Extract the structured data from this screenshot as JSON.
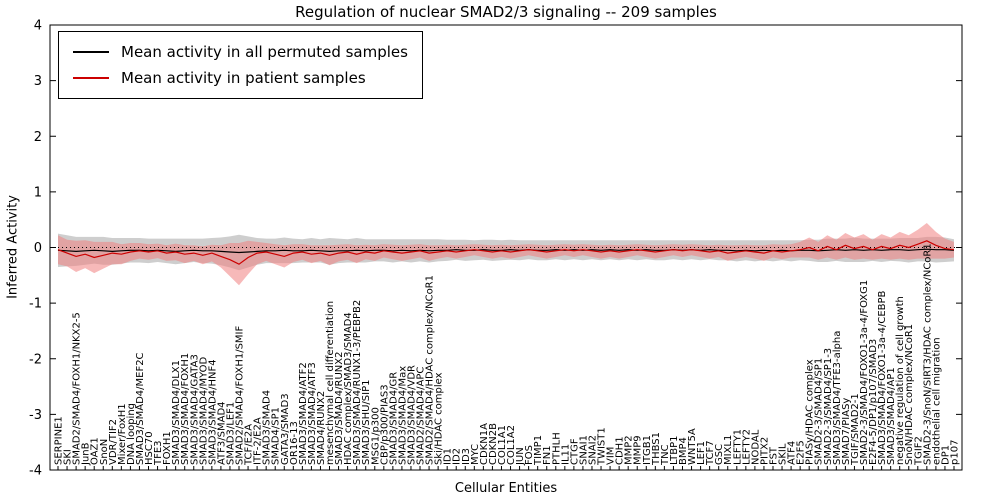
{
  "figure": {
    "title": "Regulation of nuclear SMAD2/3 signaling -- 209 samples",
    "xlabel": "Cellular Entities",
    "ylabel": "Inferred Activity"
  },
  "legend": {
    "items": [
      {
        "label": "Mean activity in all permuted samples",
        "color": "#000000"
      },
      {
        "label": "Mean activity in patient samples",
        "color": "#cc0000"
      }
    ]
  },
  "chart_data": {
    "type": "line",
    "title": "Regulation of nuclear SMAD2/3 signaling -- 209 samples",
    "xlabel": "Cellular Entities",
    "ylabel": "Inferred Activity",
    "ylim": [
      -4,
      4
    ],
    "yticks": [
      -4,
      -3,
      -2,
      -1,
      0,
      1,
      2,
      3,
      4
    ],
    "grid": false,
    "zero_line": true,
    "legend_position": "upper left",
    "categories": [
      "SERPINE1",
      "SKI",
      "SMAD2/SMAD4/FOXH1/NKX2-5",
      "JunB",
      "OAZ1",
      "SnoN",
      "VDR/TIF2",
      "Mixer/FoxH1",
      "DNA looping",
      "SMAD3/SMAD4/MEF2C",
      "HSC70",
      "TFE3",
      "FOXH1",
      "SMAD3/SMAD4/DLX1",
      "SMAD3/SMAD4/FOXH1",
      "SMAD3/SMAD4/GATA3",
      "SMAD3/SMAD4/MYOD",
      "SMAD3/SMAD4/HNF4",
      "ATF3/SMAD4",
      "SMAD3/LEF1",
      "SMAD2/SMAD4/FOXH1/SMIF",
      "TCF/E2A",
      "ITF-2/E2A",
      "SMAD3/SMAD4",
      "SMAD4/SP1",
      "GATA3/SMAD3",
      "OR16-13",
      "SMAD3/SMAD4/ATF2",
      "SMAD3/SMAD4/ATF3",
      "SMAD4/RUNX2",
      "mesenchymal cell differentiation",
      "SMAD3/SMAD4/RUNX2",
      "HDAC complex/SMAD3/SMAD4",
      "SMAD3/SMAD4/RUNX1-3/PEBPB2",
      "SMAD3/SHU/SIP1",
      "MSG1/p300",
      "CBP/p300/PIAS3",
      "SMAD3/SMAD4/GR",
      "SMAD3/SMAD4/Max",
      "SMAD3/SMAD4/VDR",
      "SMAD2/SMAD4/APC",
      "SMAD2/SMAD4/HDAC complex/NCoR1",
      "Ski/HDAC complex",
      "ID1",
      "ID2",
      "ID3",
      "MYC",
      "CDKN1A",
      "CDKN2B",
      "COL1A1",
      "COL1A2",
      "JUN",
      "FOS",
      "TIMP1",
      "FN1",
      "PTHLH",
      "IL11",
      "CTGF",
      "SNAI1",
      "SNAI2",
      "TWIST1",
      "VIM",
      "CDH1",
      "MMP2",
      "MMP9",
      "ITGB1",
      "THBS1",
      "TNC",
      "LTBP1",
      "BMP4",
      "WNT5A",
      "LEF1",
      "TCF7",
      "GSC",
      "MIXL1",
      "LEFTY1",
      "LEFTY2",
      "NODAL",
      "PITX2",
      "FST",
      "SKIL",
      "ATF4",
      "E2F5",
      "PIASy/HDAC complex",
      "SMAD2-3/SMAD4/SP1",
      "SMAD2-3/SMAD4/SP1-3",
      "SMAD3/SMAD4/TFE3-alpha",
      "SMAD7/PIASy",
      "TGIF/SMAD2-1",
      "SMAD2-3/SMAD4/FOXO1-3a-4/FOXG1",
      "E2F4-5/DP1/p107/SMAD3",
      "SMAD3/SMAD4/FOXO1-3a-4/CEBPB",
      "SMAD3/SMAD4/AP1",
      "negative regulation of cell growth",
      "SnoN/HDAC complex/NCoR1",
      "TGIF2",
      "SMAD2-3/SnoN/SIRT3/HDAC complex/NCoR1",
      "endothelial cell migration",
      "DP1",
      "p107"
    ],
    "series": [
      {
        "name": "Mean activity in all permuted samples",
        "color": "#000000",
        "band_color": "#bdbdbd",
        "band_opacity": 0.75,
        "values": [
          -0.05,
          -0.06,
          -0.07,
          -0.06,
          -0.05,
          -0.06,
          -0.07,
          -0.06,
          -0.05,
          -0.05,
          -0.06,
          -0.05,
          -0.06,
          -0.07,
          -0.06,
          -0.05,
          -0.06,
          -0.06,
          -0.07,
          -0.08,
          -0.09,
          -0.08,
          -0.07,
          -0.06,
          -0.06,
          -0.05,
          -0.06,
          -0.06,
          -0.05,
          -0.06,
          -0.07,
          -0.06,
          -0.06,
          -0.05,
          -0.06,
          -0.05,
          -0.05,
          -0.06,
          -0.05,
          -0.06,
          -0.05,
          -0.06,
          -0.05,
          -0.05,
          -0.04,
          -0.05,
          -0.05,
          -0.04,
          -0.05,
          -0.05,
          -0.04,
          -0.05,
          -0.04,
          -0.05,
          -0.05,
          -0.04,
          -0.05,
          -0.04,
          -0.05,
          -0.04,
          -0.05,
          -0.04,
          -0.05,
          -0.04,
          -0.05,
          -0.04,
          -0.05,
          -0.05,
          -0.04,
          -0.05,
          -0.04,
          -0.05,
          -0.04,
          -0.05,
          -0.05,
          -0.06,
          -0.05,
          -0.06,
          -0.05,
          -0.06,
          -0.05,
          -0.06,
          -0.05,
          -0.05,
          -0.06,
          -0.05,
          -0.04,
          -0.05,
          -0.04,
          -0.05,
          -0.04,
          -0.05,
          -0.04,
          -0.04,
          -0.05,
          -0.04,
          -0.03,
          -0.04,
          -0.04,
          -0.05
        ],
        "band_halfwidth": [
          0.3,
          0.28,
          0.26,
          0.25,
          0.24,
          0.25,
          0.24,
          0.23,
          0.22,
          0.22,
          0.22,
          0.21,
          0.22,
          0.23,
          0.22,
          0.21,
          0.22,
          0.23,
          0.25,
          0.28,
          0.32,
          0.28,
          0.24,
          0.22,
          0.22,
          0.23,
          0.22,
          0.21,
          0.22,
          0.21,
          0.24,
          0.22,
          0.21,
          0.22,
          0.21,
          0.2,
          0.2,
          0.21,
          0.2,
          0.21,
          0.2,
          0.21,
          0.2,
          0.19,
          0.18,
          0.19,
          0.18,
          0.18,
          0.19,
          0.18,
          0.18,
          0.18,
          0.17,
          0.18,
          0.18,
          0.17,
          0.18,
          0.17,
          0.18,
          0.17,
          0.18,
          0.17,
          0.18,
          0.17,
          0.18,
          0.17,
          0.18,
          0.18,
          0.17,
          0.18,
          0.17,
          0.18,
          0.17,
          0.18,
          0.18,
          0.19,
          0.18,
          0.19,
          0.18,
          0.19,
          0.18,
          0.19,
          0.18,
          0.19,
          0.2,
          0.21,
          0.2,
          0.21,
          0.22,
          0.21,
          0.2,
          0.21,
          0.2,
          0.21,
          0.22,
          0.21,
          0.22,
          0.23,
          0.22,
          0.2
        ]
      },
      {
        "name": "Mean activity in patient samples",
        "color": "#cc0000",
        "band_color": "#f08080",
        "band_opacity": 0.55,
        "values": [
          -0.04,
          -0.1,
          -0.16,
          -0.12,
          -0.18,
          -0.14,
          -0.1,
          -0.12,
          -0.08,
          -0.06,
          -0.08,
          -0.06,
          -0.1,
          -0.08,
          -0.12,
          -0.1,
          -0.14,
          -0.1,
          -0.16,
          -0.22,
          -0.3,
          -0.18,
          -0.1,
          -0.08,
          -0.12,
          -0.16,
          -0.1,
          -0.08,
          -0.12,
          -0.1,
          -0.14,
          -0.1,
          -0.08,
          -0.12,
          -0.08,
          -0.1,
          -0.06,
          -0.08,
          -0.1,
          -0.08,
          -0.06,
          -0.1,
          -0.08,
          -0.06,
          -0.08,
          -0.06,
          -0.04,
          -0.06,
          -0.08,
          -0.06,
          -0.08,
          -0.06,
          -0.04,
          -0.06,
          -0.08,
          -0.06,
          -0.04,
          -0.06,
          -0.04,
          -0.06,
          -0.08,
          -0.06,
          -0.08,
          -0.06,
          -0.04,
          -0.06,
          -0.08,
          -0.06,
          -0.04,
          -0.06,
          -0.04,
          -0.06,
          -0.08,
          -0.06,
          -0.1,
          -0.08,
          -0.06,
          -0.08,
          -0.1,
          -0.06,
          -0.08,
          -0.06,
          -0.04,
          0.0,
          -0.06,
          0.02,
          -0.04,
          0.04,
          -0.02,
          0.02,
          -0.04,
          0.02,
          -0.02,
          0.04,
          0.0,
          0.06,
          0.12,
          0.04,
          -0.02,
          -0.04
        ],
        "band_halfwidth": [
          0.26,
          0.24,
          0.28,
          0.25,
          0.28,
          0.24,
          0.2,
          0.18,
          0.16,
          0.14,
          0.14,
          0.13,
          0.14,
          0.15,
          0.16,
          0.14,
          0.16,
          0.15,
          0.2,
          0.3,
          0.38,
          0.3,
          0.2,
          0.16,
          0.18,
          0.2,
          0.16,
          0.14,
          0.16,
          0.14,
          0.18,
          0.15,
          0.14,
          0.16,
          0.13,
          0.14,
          0.12,
          0.13,
          0.14,
          0.13,
          0.12,
          0.14,
          0.12,
          0.11,
          0.12,
          0.11,
          0.1,
          0.11,
          0.12,
          0.11,
          0.12,
          0.11,
          0.1,
          0.11,
          0.12,
          0.11,
          0.1,
          0.11,
          0.1,
          0.11,
          0.12,
          0.11,
          0.12,
          0.11,
          0.1,
          0.11,
          0.12,
          0.11,
          0.1,
          0.11,
          0.1,
          0.11,
          0.12,
          0.11,
          0.14,
          0.12,
          0.11,
          0.12,
          0.14,
          0.12,
          0.13,
          0.12,
          0.14,
          0.18,
          0.16,
          0.2,
          0.18,
          0.22,
          0.2,
          0.22,
          0.18,
          0.22,
          0.2,
          0.24,
          0.22,
          0.26,
          0.32,
          0.24,
          0.18,
          0.14
        ]
      }
    ]
  }
}
